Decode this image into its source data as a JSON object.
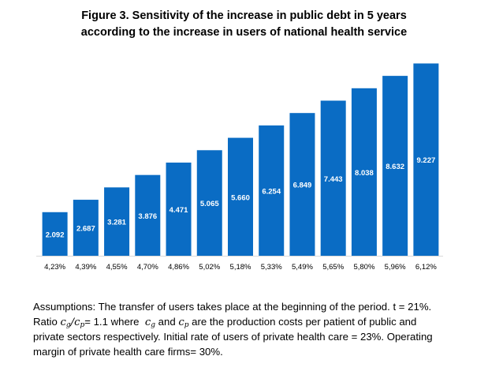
{
  "chart_data": {
    "type": "bar",
    "title": [
      "Figure 3. Sensitivity of the increase in public debt in 5 years",
      "according to the increase in users of national health service"
    ],
    "xlabel": "",
    "ylabel": "",
    "categories": [
      "4,23%",
      "4,39%",
      "4,55%",
      "4,70%",
      "4,86%",
      "5,02%",
      "5,18%",
      "5,33%",
      "5,49%",
      "5,65%",
      "5,80%",
      "5,96%",
      "6,12%"
    ],
    "values": [
      2.092,
      2.687,
      3.281,
      3.876,
      4.471,
      5.065,
      5.66,
      6.254,
      6.849,
      7.443,
      8.038,
      8.632,
      9.227
    ],
    "data_labels": [
      "2.092",
      "2.687",
      "3.281",
      "3.876",
      "4.471",
      "5.065",
      "5.660",
      "6.254",
      "6.849",
      "7.443",
      "8.038",
      "8.632",
      "9.227"
    ],
    "ylim": [
      0,
      10
    ],
    "grid": false,
    "legend": "none",
    "bar_color": "#0a6cc4",
    "label_color": "#ffffff"
  },
  "notes": {
    "line1": "Assumptions: The transfer of users takes place at the beginning of the period. t = 21%.",
    "line2_a": "Ratio ",
    "c": "c",
    "sub_g": "g",
    "slash": "/",
    "sub_p": "p",
    "line2_b": "= 1.1 where ",
    "line2_c": " and ",
    "line2_d": " are the production costs per patient of public and",
    "line3": "private sectors respectively. Initial rate of users of private health care = 23%. Operating",
    "line4": "margin of private health care firms= 30%."
  }
}
